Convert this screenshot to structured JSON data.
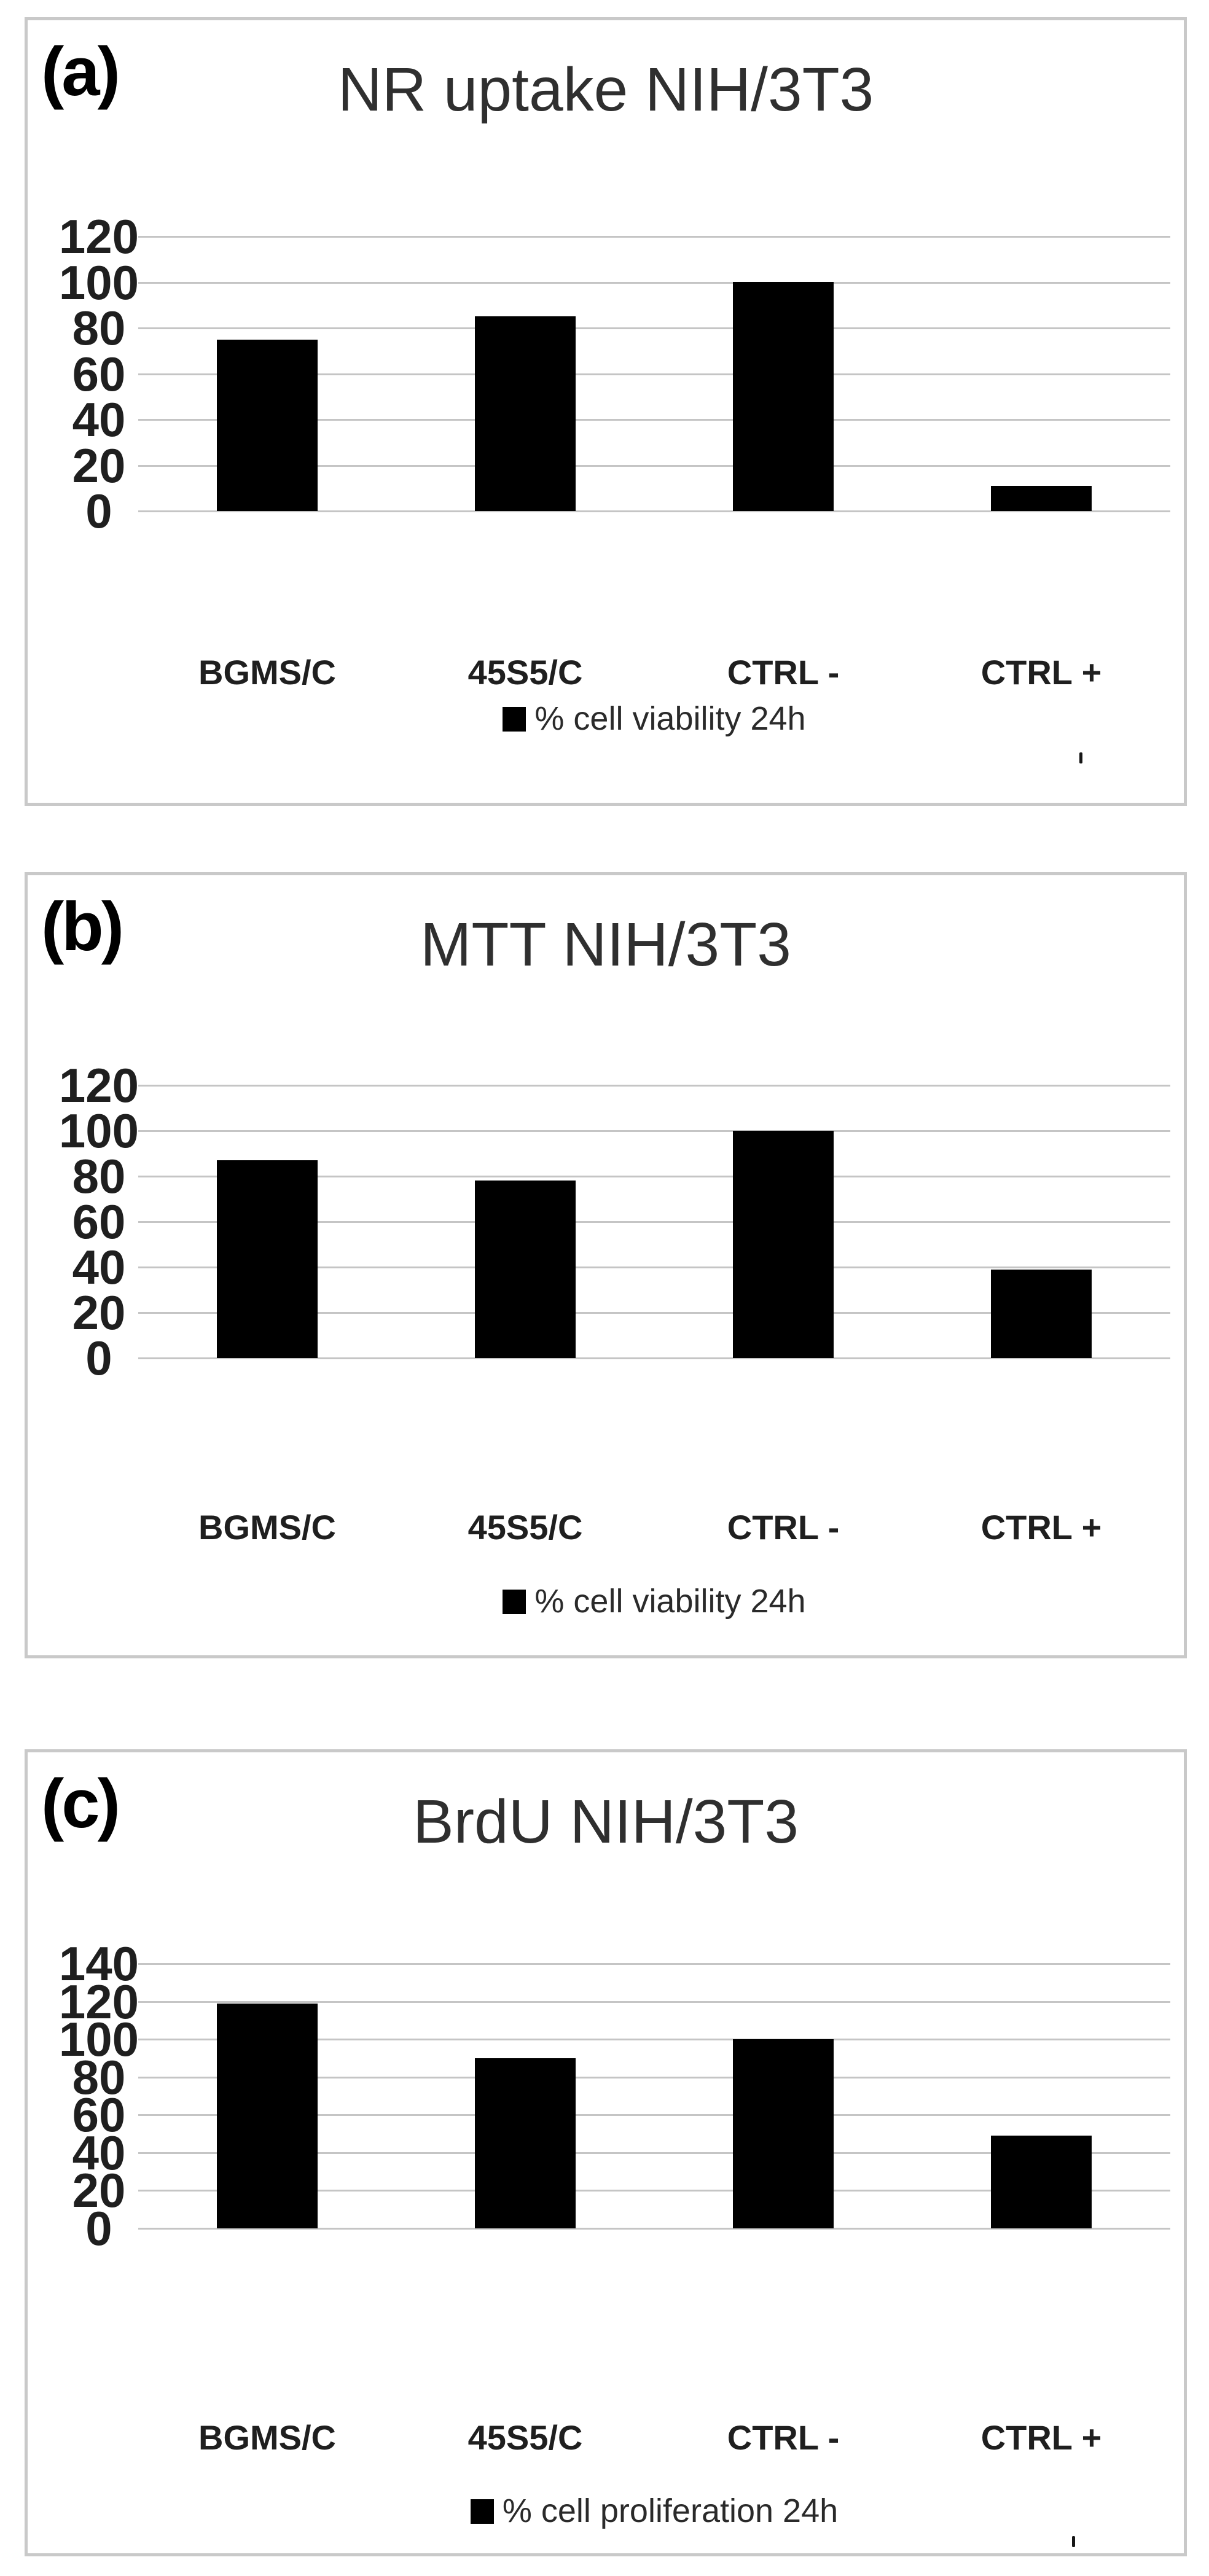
{
  "figure": {
    "panels": [
      {
        "panel_label": "(a)",
        "title": "NR uptake NIH/3T3",
        "legend_label": "% cell viability 24h"
      },
      {
        "panel_label": "(b)",
        "title": "MTT NIH/3T3",
        "legend_label": "% cell viability 24h"
      },
      {
        "panel_label": "(c)",
        "title": "BrdU NIH/3T3",
        "legend_label": "% cell proliferation 24h"
      }
    ]
  },
  "chart_data": [
    {
      "type": "bar",
      "panel": "(a)",
      "title": "NR uptake NIH/3T3",
      "categories": [
        "BGMS/C",
        "45S5/C",
        "CTRL -",
        "CTRL +"
      ],
      "values": [
        75,
        85,
        100,
        11
      ],
      "series_label": "% cell viability 24h",
      "xlabel": "",
      "ylabel": "",
      "ylim": [
        0,
        120
      ],
      "ytick_step": 20,
      "yticks": [
        0,
        20,
        40,
        60,
        80,
        100,
        120
      ],
      "grid": true,
      "legend_position": "bottom",
      "bar_color": "#000000",
      "gridline_color": "#c5c5c5"
    },
    {
      "type": "bar",
      "panel": "(b)",
      "title": "MTT NIH/3T3",
      "categories": [
        "BGMS/C",
        "45S5/C",
        "CTRL -",
        "CTRL +"
      ],
      "values": [
        87,
        78,
        100,
        39
      ],
      "series_label": "% cell viability 24h",
      "xlabel": "",
      "ylabel": "",
      "ylim": [
        0,
        120
      ],
      "ytick_step": 20,
      "yticks": [
        0,
        20,
        40,
        60,
        80,
        100,
        120
      ],
      "grid": true,
      "legend_position": "bottom",
      "bar_color": "#000000",
      "gridline_color": "#c5c5c5"
    },
    {
      "type": "bar",
      "panel": "(c)",
      "title": "BrdU NIH/3T3",
      "categories": [
        "BGMS/C",
        "45S5/C",
        "CTRL -",
        "CTRL +"
      ],
      "values": [
        119,
        90,
        100,
        49
      ],
      "series_label": "% cell proliferation 24h",
      "xlabel": "",
      "ylabel": "",
      "ylim": [
        0,
        140
      ],
      "ytick_step": 20,
      "yticks": [
        0,
        20,
        40,
        60,
        80,
        100,
        120,
        140
      ],
      "grid": true,
      "legend_position": "bottom",
      "bar_color": "#000000",
      "gridline_color": "#c5c5c5"
    }
  ]
}
